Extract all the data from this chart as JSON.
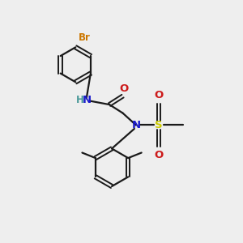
{
  "bg_color": "#eeeeee",
  "bond_color": "#1a1a1a",
  "N_color": "#1a1acc",
  "O_color": "#cc1a1a",
  "S_color": "#cccc00",
  "Br_color": "#cc7700",
  "H_color": "#4a9999",
  "bond_width": 1.6,
  "font_size": 8.5,
  "fig_size": [
    3.0,
    3.0
  ],
  "dpi": 100,
  "ring_r": 0.72,
  "xlim": [
    0,
    10
  ],
  "ylim": [
    0,
    10
  ]
}
